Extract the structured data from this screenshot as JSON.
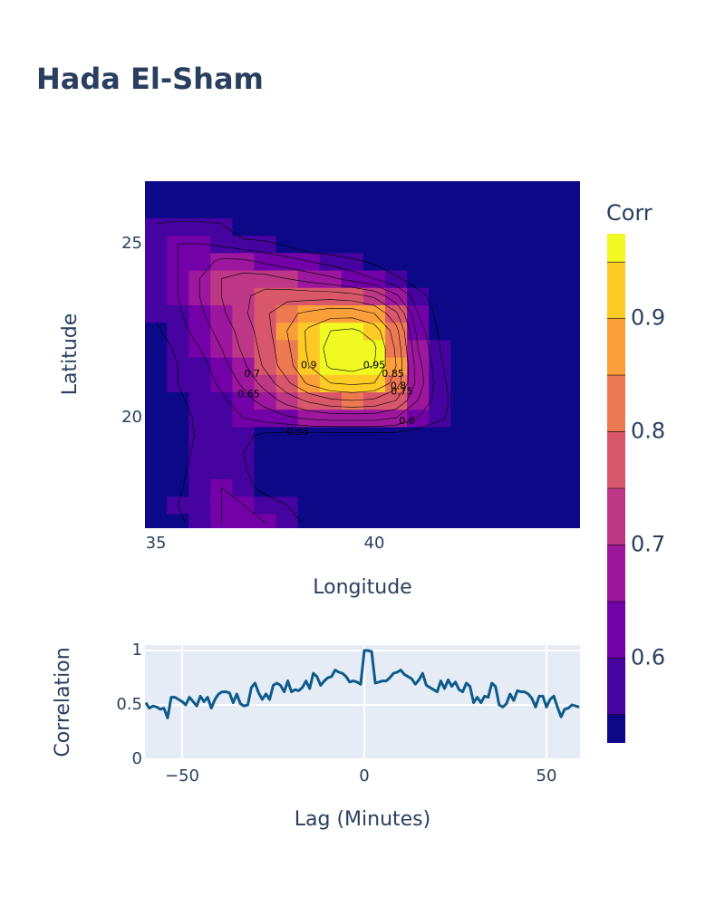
{
  "chart_data": [
    {
      "type": "contour",
      "title": "Hada El-Sham",
      "xaxis_title": "Longitude",
      "yaxis_title": "Latitude",
      "x": [
        35,
        35.5,
        36,
        36.5,
        37,
        37.5,
        38,
        38.5,
        39,
        39.5,
        40,
        40.5,
        41,
        41.5,
        42,
        42.5,
        43,
        43.5,
        44,
        44.5
      ],
      "y": [
        17,
        17.5,
        18,
        18.5,
        19,
        19.5,
        20,
        20.5,
        21,
        21.5,
        22,
        22.5,
        23,
        23.5,
        24,
        24.5,
        25,
        25.5,
        26,
        26.5
      ],
      "z": [
        [
          0.5,
          0.54,
          0.57,
          0.6,
          0.61,
          0.6,
          0.57,
          0.54,
          0.5,
          0.5,
          0.5,
          0.5,
          0.5,
          0.5,
          0.5,
          0.5,
          0.5,
          0.5,
          0.5,
          0.5
        ],
        [
          0.5,
          0.55,
          0.58,
          0.6,
          0.6,
          0.58,
          0.55,
          0.52,
          0.5,
          0.5,
          0.5,
          0.5,
          0.5,
          0.5,
          0.5,
          0.5,
          0.5,
          0.5,
          0.5,
          0.5
        ],
        [
          0.5,
          0.54,
          0.58,
          0.6,
          0.57,
          0.53,
          0.5,
          0.5,
          0.5,
          0.5,
          0.5,
          0.5,
          0.5,
          0.5,
          0.5,
          0.5,
          0.5,
          0.5,
          0.5,
          0.5
        ],
        [
          0.5,
          0.53,
          0.58,
          0.59,
          0.56,
          0.5,
          0.5,
          0.5,
          0.5,
          0.5,
          0.5,
          0.5,
          0.5,
          0.5,
          0.5,
          0.5,
          0.5,
          0.5,
          0.5,
          0.5
        ],
        [
          0.5,
          0.52,
          0.57,
          0.59,
          0.55,
          0.52,
          0.5,
          0.5,
          0.5,
          0.5,
          0.5,
          0.5,
          0.5,
          0.5,
          0.5,
          0.5,
          0.5,
          0.5,
          0.5,
          0.5
        ],
        [
          0.5,
          0.52,
          0.56,
          0.58,
          0.56,
          0.54,
          0.53,
          0.53,
          0.53,
          0.53,
          0.53,
          0.53,
          0.52,
          0.5,
          0.5,
          0.5,
          0.5,
          0.5,
          0.5,
          0.5
        ],
        [
          0.5,
          0.53,
          0.56,
          0.58,
          0.6,
          0.62,
          0.64,
          0.66,
          0.67,
          0.67,
          0.67,
          0.65,
          0.6,
          0.56,
          0.52,
          0.5,
          0.5,
          0.5,
          0.5,
          0.5
        ],
        [
          0.5,
          0.54,
          0.57,
          0.59,
          0.63,
          0.67,
          0.72,
          0.76,
          0.79,
          0.8,
          0.79,
          0.75,
          0.65,
          0.57,
          0.52,
          0.5,
          0.5,
          0.5,
          0.5,
          0.5
        ],
        [
          0.5,
          0.55,
          0.57,
          0.61,
          0.66,
          0.72,
          0.79,
          0.86,
          0.9,
          0.91,
          0.9,
          0.83,
          0.68,
          0.57,
          0.5,
          0.5,
          0.5,
          0.5,
          0.5,
          0.5
        ],
        [
          0.5,
          0.55,
          0.58,
          0.63,
          0.69,
          0.76,
          0.83,
          0.9,
          0.96,
          0.97,
          0.95,
          0.85,
          0.67,
          0.56,
          0.5,
          0.5,
          0.5,
          0.5,
          0.5,
          0.5
        ],
        [
          0.52,
          0.56,
          0.6,
          0.65,
          0.71,
          0.77,
          0.84,
          0.91,
          0.97,
          0.98,
          0.96,
          0.84,
          0.65,
          0.55,
          0.5,
          0.5,
          0.5,
          0.5,
          0.5,
          0.5
        ],
        [
          0.54,
          0.58,
          0.62,
          0.67,
          0.72,
          0.78,
          0.85,
          0.91,
          0.95,
          0.96,
          0.93,
          0.82,
          0.63,
          0.54,
          0.5,
          0.5,
          0.5,
          0.5,
          0.5,
          0.5
        ],
        [
          0.56,
          0.59,
          0.64,
          0.69,
          0.74,
          0.79,
          0.84,
          0.86,
          0.88,
          0.88,
          0.85,
          0.76,
          0.6,
          0.53,
          0.5,
          0.5,
          0.5,
          0.5,
          0.5,
          0.5
        ],
        [
          0.56,
          0.6,
          0.65,
          0.7,
          0.74,
          0.77,
          0.78,
          0.78,
          0.78,
          0.77,
          0.74,
          0.66,
          0.57,
          0.52,
          0.5,
          0.5,
          0.5,
          0.5,
          0.5,
          0.5
        ],
        [
          0.57,
          0.6,
          0.65,
          0.7,
          0.72,
          0.72,
          0.7,
          0.68,
          0.66,
          0.63,
          0.6,
          0.56,
          0.52,
          0.5,
          0.5,
          0.5,
          0.5,
          0.5,
          0.5,
          0.5
        ],
        [
          0.57,
          0.6,
          0.63,
          0.66,
          0.66,
          0.64,
          0.62,
          0.6,
          0.58,
          0.56,
          0.54,
          0.5,
          0.5,
          0.5,
          0.5,
          0.5,
          0.5,
          0.5,
          0.5,
          0.5
        ],
        [
          0.57,
          0.6,
          0.6,
          0.59,
          0.57,
          0.56,
          0.54,
          0.5,
          0.5,
          0.5,
          0.5,
          0.5,
          0.5,
          0.5,
          0.5,
          0.5,
          0.5,
          0.5,
          0.5,
          0.5
        ],
        [
          0.56,
          0.57,
          0.57,
          0.56,
          0.5,
          0.5,
          0.5,
          0.5,
          0.5,
          0.5,
          0.5,
          0.5,
          0.5,
          0.5,
          0.5,
          0.5,
          0.5,
          0.5,
          0.5,
          0.5
        ],
        [
          0.5,
          0.5,
          0.5,
          0.5,
          0.5,
          0.5,
          0.5,
          0.5,
          0.5,
          0.5,
          0.5,
          0.5,
          0.5,
          0.5,
          0.5,
          0.5,
          0.5,
          0.5,
          0.5,
          0.5
        ],
        [
          0.5,
          0.5,
          0.5,
          0.5,
          0.5,
          0.5,
          0.5,
          0.5,
          0.5,
          0.5,
          0.5,
          0.5,
          0.5,
          0.5,
          0.5,
          0.5,
          0.5,
          0.5,
          0.5,
          0.5
        ]
      ],
      "contour_levels": [
        0.55,
        0.6,
        0.65,
        0.7,
        0.75,
        0.8,
        0.85,
        0.9,
        0.95
      ],
      "colorscale": [
        "#0d0887",
        "#46039f",
        "#7201a8",
        "#9c179e",
        "#bd3786",
        "#d8576b",
        "#ed7953",
        "#fb9f3a",
        "#fdca26",
        "#f0f921"
      ],
      "xlim": [
        34.75,
        44.71
      ],
      "ylim": [
        16.83,
        26.8
      ],
      "xticks": [
        35,
        40
      ],
      "yticks": [
        20,
        25
      ],
      "colorbar": {
        "title": "Corr",
        "zlim": [
          0.525,
          0.975
        ],
        "ticks": [
          0.6,
          0.7,
          0.8,
          0.9
        ]
      }
    },
    {
      "type": "line",
      "xaxis_title": "Lag (Minutes)",
      "yaxis_title": "Correlation",
      "color": "#0e5a8a",
      "grid": true,
      "x": [
        -60,
        -59,
        -58,
        -57,
        -56,
        -55,
        -54,
        -53,
        -52,
        -51,
        -50,
        -49,
        -48,
        -47,
        -46,
        -45,
        -44,
        -43,
        -42,
        -41,
        -40,
        -39,
        -38,
        -37,
        -36,
        -35,
        -34,
        -33,
        -32,
        -31,
        -30,
        -29,
        -28,
        -27,
        -26,
        -25,
        -24,
        -23,
        -22,
        -21,
        -20,
        -19,
        -18,
        -17,
        -16,
        -15,
        -14,
        -13,
        -12,
        -11,
        -10,
        -9,
        -8,
        -7,
        -6,
        -5,
        -4,
        -3,
        -2,
        -1,
        0,
        1,
        2,
        3,
        4,
        5,
        6,
        7,
        8,
        9,
        10,
        11,
        12,
        13,
        14,
        15,
        16,
        17,
        18,
        19,
        20,
        21,
        22,
        23,
        24,
        25,
        26,
        27,
        28,
        29,
        30,
        31,
        32,
        33,
        34,
        35,
        36,
        37,
        38,
        39,
        40,
        41,
        42,
        43,
        44,
        45,
        46,
        47,
        48,
        49,
        50,
        51,
        52,
        53,
        54,
        55,
        56,
        57,
        58,
        59
      ],
      "values": [
        0.52,
        0.47,
        0.49,
        0.48,
        0.46,
        0.47,
        0.38,
        0.57,
        0.57,
        0.55,
        0.53,
        0.5,
        0.57,
        0.53,
        0.49,
        0.58,
        0.53,
        0.57,
        0.47,
        0.55,
        0.6,
        0.62,
        0.62,
        0.61,
        0.52,
        0.6,
        0.51,
        0.49,
        0.5,
        0.66,
        0.7,
        0.61,
        0.55,
        0.6,
        0.55,
        0.68,
        0.7,
        0.68,
        0.62,
        0.72,
        0.62,
        0.64,
        0.63,
        0.66,
        0.72,
        0.65,
        0.79,
        0.76,
        0.68,
        0.72,
        0.75,
        0.76,
        0.82,
        0.8,
        0.79,
        0.76,
        0.71,
        0.72,
        0.71,
        0.69,
        1,
        1,
        0.99,
        0.7,
        0.71,
        0.72,
        0.72,
        0.75,
        0.79,
        0.8,
        0.82,
        0.78,
        0.76,
        0.74,
        0.69,
        0.73,
        0.79,
        0.68,
        0.66,
        0.64,
        0.62,
        0.72,
        0.65,
        0.73,
        0.67,
        0.71,
        0.64,
        0.62,
        0.7,
        0.67,
        0.52,
        0.57,
        0.52,
        0.58,
        0.57,
        0.7,
        0.67,
        0.5,
        0.48,
        0.51,
        0.6,
        0.54,
        0.63,
        0.62,
        0.62,
        0.6,
        0.56,
        0.48,
        0.58,
        0.58,
        0.48,
        0.55,
        0.58,
        0.48,
        0.39,
        0.46,
        0.47,
        0.5,
        0.49,
        0.48
      ],
      "xlim": [
        -60.2,
        59.2
      ],
      "ylim": [
        0,
        1.05
      ],
      "xticks": [
        {
          "value": -50,
          "label": "−50"
        },
        0,
        50
      ],
      "yticks": [
        0,
        0.5,
        1
      ]
    }
  ]
}
